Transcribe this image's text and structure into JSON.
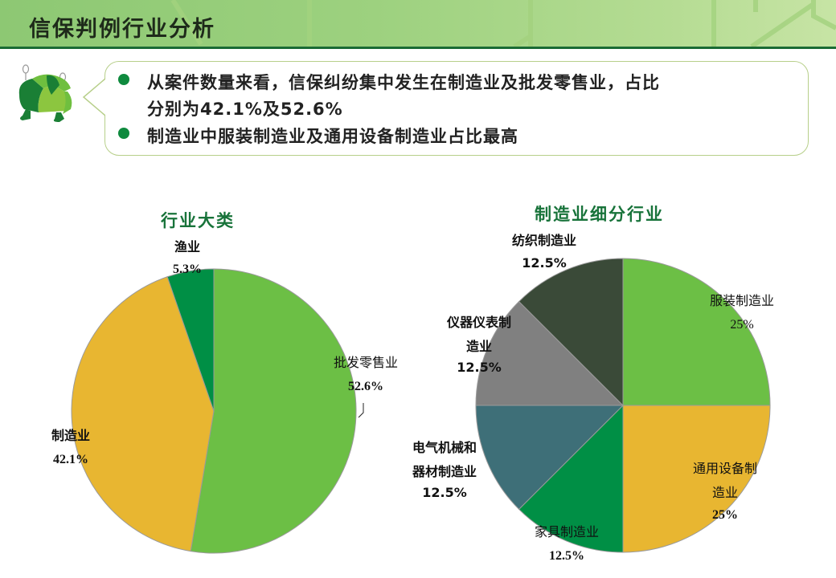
{
  "header": {
    "title": "信保判例行业分析"
  },
  "summary": {
    "bullets": [
      {
        "text_pre": "从案件数量来看，信保纠纷集中发生在制造业及批发零售业，占比",
        "text_line2_pre": "分别为",
        "num1": "42.1%",
        "mid": "及",
        "num2": "52.6%"
      },
      {
        "text": "制造业中服装制造业及通用设备制造业占比最高"
      }
    ]
  },
  "colors": {
    "light_green": "#6cbf45",
    "yellow": "#e8b631",
    "dark_green": "#008f45",
    "dark_olive": "#3a4a38",
    "gray": "#808080",
    "teal": "#3e6f78",
    "title_green": "#18733a"
  },
  "chart_data": [
    {
      "type": "pie",
      "title": "行业大类",
      "categories": [
        "批发零售业",
        "制造业",
        "渔业"
      ],
      "values": [
        52.6,
        42.1,
        5.3
      ],
      "labels": [
        "52.6%",
        "42.1%",
        "5.3%"
      ],
      "colors": [
        "#6cbf45",
        "#e8b631",
        "#008f45"
      ]
    },
    {
      "type": "pie",
      "title": "制造业细分行业",
      "categories": [
        "服装制造业",
        "通用设备制造业",
        "家具制造业",
        "电气机械和器材制造业",
        "仪器仪表制造业",
        "纺织制造业"
      ],
      "values": [
        25,
        25,
        12.5,
        12.5,
        12.5,
        12.5
      ],
      "labels": [
        "25%",
        "25%",
        "12.5%",
        "12.5%",
        "12.5%",
        "12.5%"
      ],
      "colors": [
        "#6cbf45",
        "#e8b631",
        "#008f45",
        "#3e6f78",
        "#808080",
        "#3a4a38"
      ]
    }
  ],
  "left_labels": {
    "fishery": {
      "name": "渔业",
      "pct": "5.3%"
    },
    "wholesale": {
      "name": "批发零售业",
      "pct": "52.6%"
    },
    "manufacturing": {
      "name": "制造业",
      "pct": "42.1%"
    }
  },
  "right_labels": {
    "textile": {
      "name": "纺织制造业",
      "pct": "12.5%"
    },
    "apparel": {
      "name": "服装制造业",
      "pct": "25%"
    },
    "instrument": {
      "name1": "仪器仪表制",
      "name2": "造业",
      "pct": "12.5%"
    },
    "electrical": {
      "name1": "电气机械和",
      "name2": "器材制造业",
      "pct": "12.5%"
    },
    "general": {
      "name1": "通用设备制",
      "name2": "造业",
      "pct": "25%"
    },
    "furniture": {
      "name": "家具制造业",
      "pct": "12.5%"
    }
  }
}
